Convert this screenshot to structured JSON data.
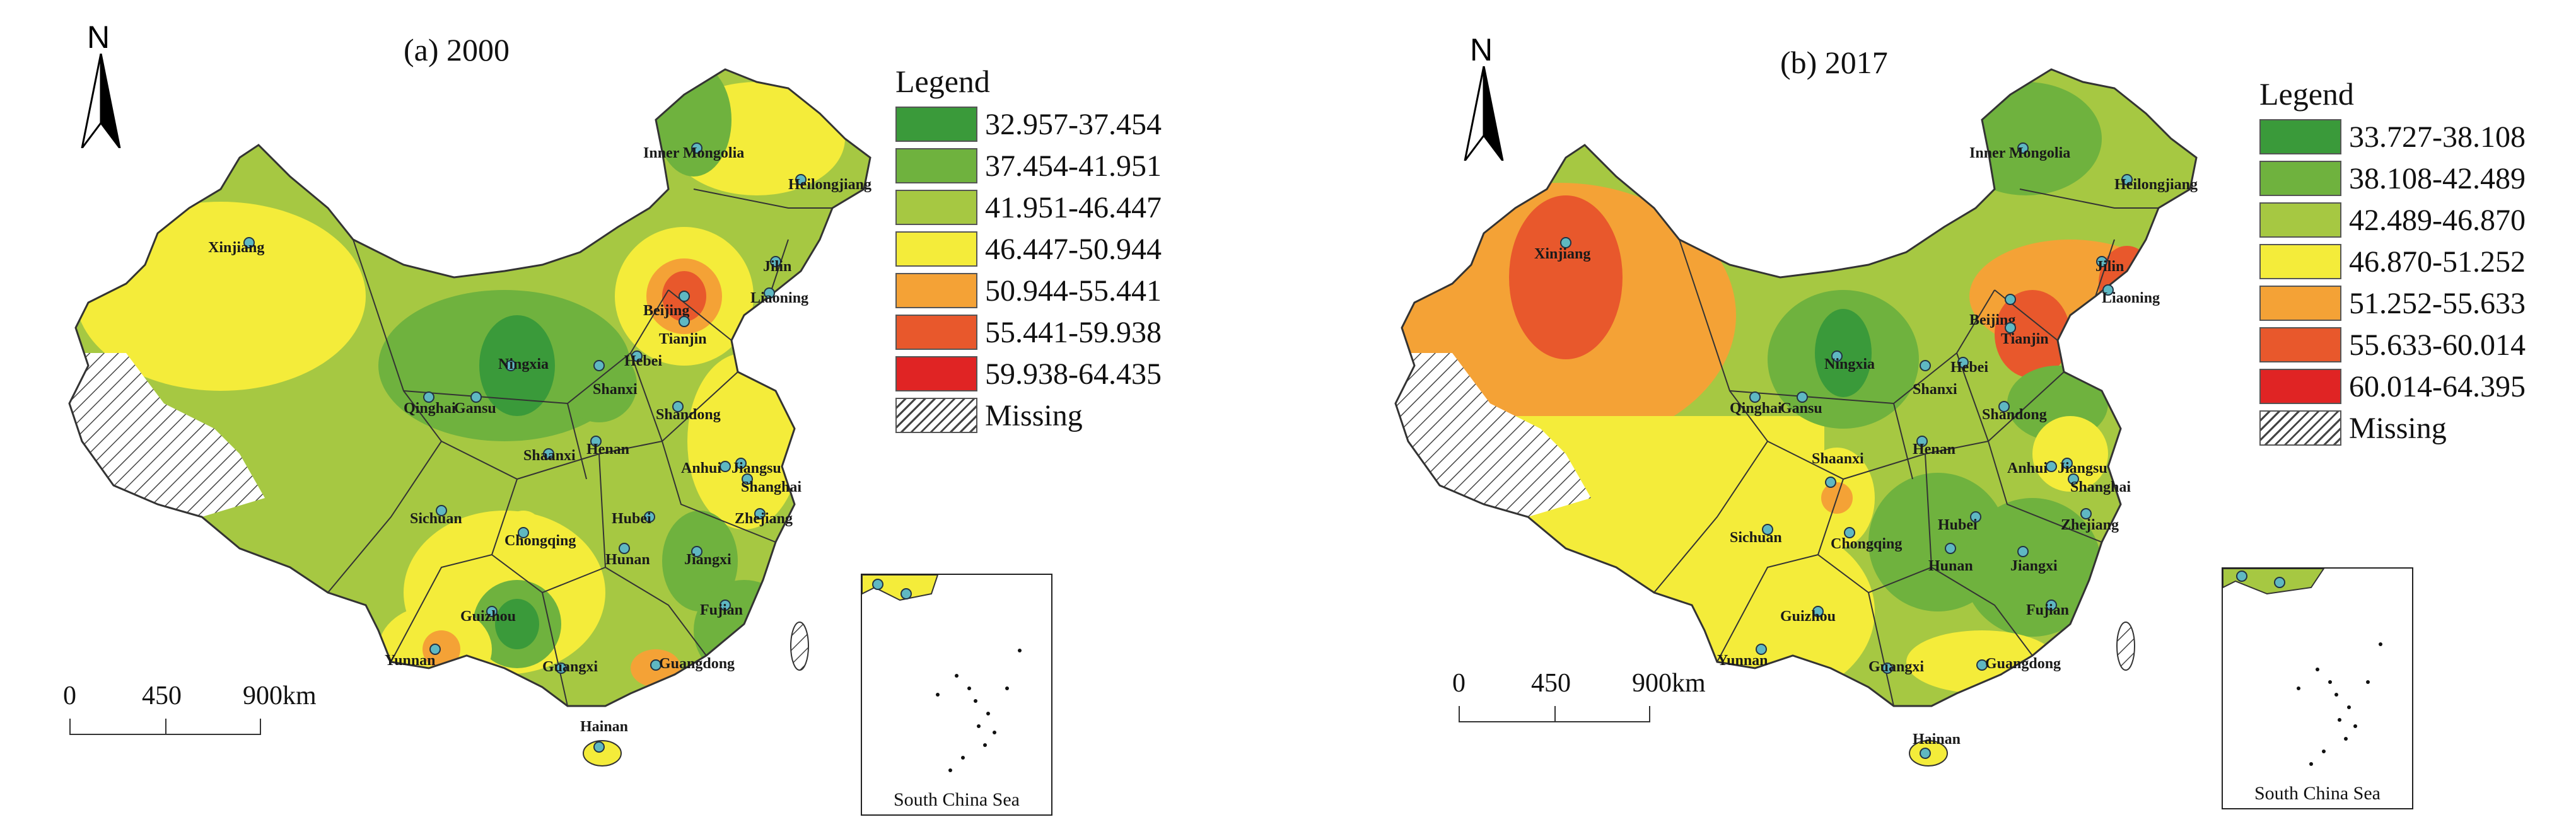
{
  "panels": [
    {
      "title": "(a) 2000",
      "north": "N",
      "legend_title": "Legend",
      "legend": [
        {
          "label": "32.957-37.454",
          "color": "#3a9a3a"
        },
        {
          "label": "37.454-41.951",
          "color": "#6fb23e"
        },
        {
          "label": "41.951-46.447",
          "color": "#a6c842"
        },
        {
          "label": "46.447-50.944",
          "color": "#f4ec3a"
        },
        {
          "label": "50.944-55.441",
          "color": "#f4a236"
        },
        {
          "label": "55.441-59.938",
          "color": "#e8582c"
        },
        {
          "label": "59.938-64.435",
          "color": "#e02424"
        },
        {
          "label": "Missing",
          "color": "hatch"
        }
      ],
      "scale": [
        "0",
        "450",
        "900km"
      ],
      "inset_caption": "South China Sea",
      "provinces": [
        "Inner Mongolia",
        "Heilongjiang",
        "Xinjiang",
        "Jilin",
        "Liaoning",
        "Beijing",
        "Tianjin",
        "Ningxia",
        "Hebei",
        "Shanxi",
        "Qinghai",
        "Gansu",
        "Shandong",
        "Henan",
        "Shaanxi",
        "Anhui",
        "Jiangsu",
        "Shanghai",
        "Sichuan",
        "Hubei",
        "Zhejiang",
        "Chongqing",
        "Hunan",
        "Jiangxi",
        "Guizhou",
        "Fujian",
        "Yunnan",
        "Guangxi",
        "Guangdong",
        "Hainan"
      ]
    },
    {
      "title": "(b) 2017",
      "north": "N",
      "legend_title": "Legend",
      "legend": [
        {
          "label": "33.727-38.108",
          "color": "#3a9a3a"
        },
        {
          "label": "38.108-42.489",
          "color": "#6fb23e"
        },
        {
          "label": "42.489-46.870",
          "color": "#a6c842"
        },
        {
          "label": "46.870-51.252",
          "color": "#f4ec3a"
        },
        {
          "label": "51.252-55.633",
          "color": "#f4a236"
        },
        {
          "label": "55.633-60.014",
          "color": "#e8582c"
        },
        {
          "label": "60.014-64.395",
          "color": "#e02424"
        },
        {
          "label": "Missing",
          "color": "hatch"
        }
      ],
      "scale": [
        "0",
        "450",
        "900km"
      ],
      "inset_caption": "South China Sea",
      "provinces": [
        "Inner Mongolia",
        "Heilongjiang",
        "Xinjiang",
        "Jilin",
        "Liaoning",
        "Beijing",
        "Tianjin",
        "Ningxia",
        "Hebei",
        "Shanxi",
        "Qinghai",
        "Gansu",
        "Shandong",
        "Henan",
        "Shaanxi",
        "Anhui",
        "Jiangsu",
        "Shanghai",
        "Sichuan",
        "Hubei",
        "Zhejiang",
        "Chongqing",
        "Hunan",
        "Jiangxi",
        "Guizhou",
        "Fujian",
        "Yunnan",
        "Guangxi",
        "Guangdong",
        "Hainan"
      ]
    }
  ]
}
